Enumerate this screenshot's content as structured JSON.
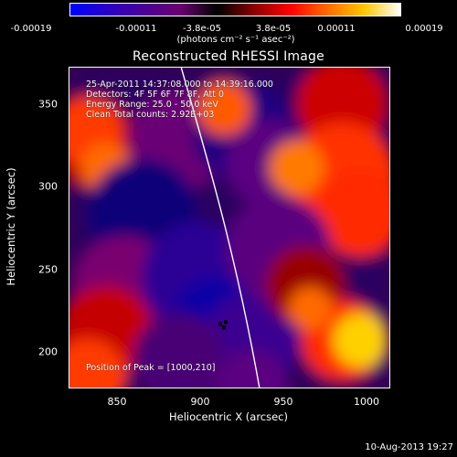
{
  "colorbar": {
    "tick_labels": [
      "-0.00019",
      "-0.00011",
      "-3.8e-05",
      "3.8e-05",
      "0.00011",
      "0.00019"
    ],
    "units": "(photons cm⁻² s⁻¹ asec⁻²)",
    "colors": [
      "#0000ff",
      "#2a00c8",
      "#4b0096",
      "#6a0070",
      "#000000",
      "#8a0000",
      "#ff0000",
      "#ff6a00",
      "#ffc600",
      "#ffffff"
    ]
  },
  "plot": {
    "title": "Reconstructed RHESSI Image",
    "info_lines": [
      "25-Apr-2011 14:37:08.000 to 14:39:16.000",
      "Detectors: 4F 5F 6F 7F 8F, Att 0",
      "Energy Range: 25.0 - 50.0 keV",
      "Clean    Total counts: 2.92E+03"
    ],
    "peak_text": "Position of Peak = [1000,210]",
    "xlabel": "Heliocentric X (arcsec)",
    "ylabel": "Heliocentric Y (arcsec)",
    "x_ticks": [
      "850",
      "900",
      "950",
      "1000"
    ],
    "y_ticks": [
      "200",
      "250",
      "300",
      "350"
    ],
    "x_range": [
      820,
      1012
    ],
    "y_range": [
      178,
      372
    ]
  },
  "timestamp": "10-Aug-2013 19:27"
}
